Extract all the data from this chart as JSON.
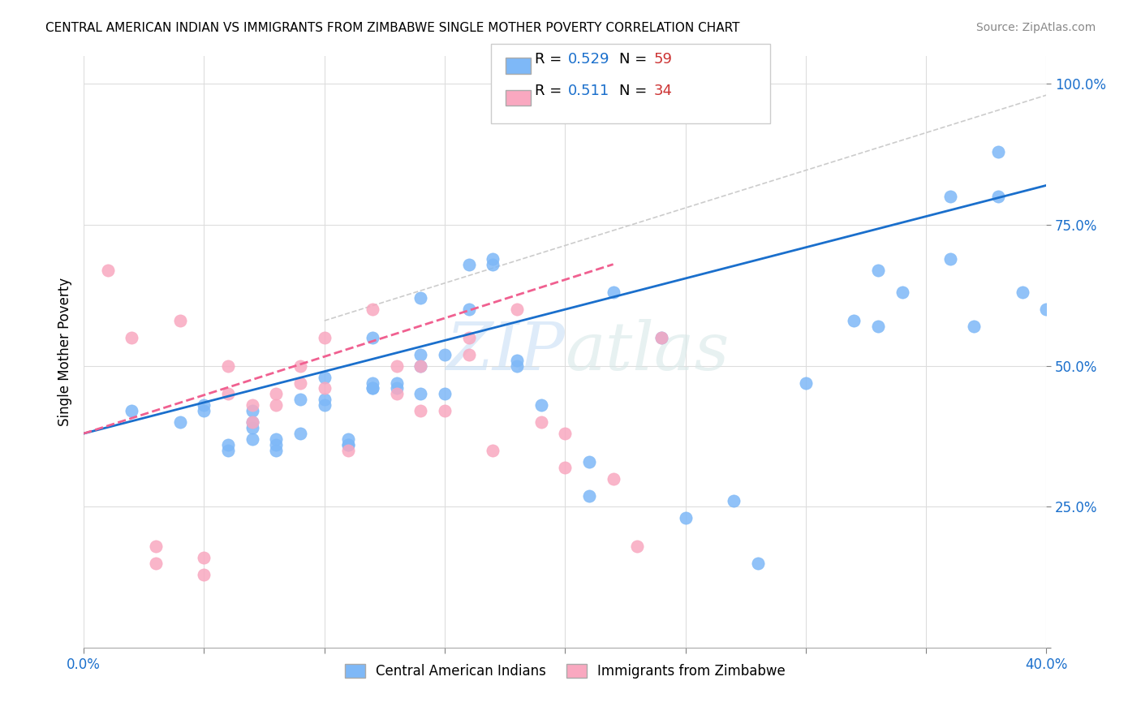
{
  "title": "CENTRAL AMERICAN INDIAN VS IMMIGRANTS FROM ZIMBABWE SINGLE MOTHER POVERTY CORRELATION CHART",
  "source": "Source: ZipAtlas.com",
  "ylabel": "Single Mother Poverty",
  "xlim": [
    0.0,
    0.4
  ],
  "ylim": [
    0.0,
    1.05
  ],
  "xticks": [
    0.0,
    0.05,
    0.1,
    0.15,
    0.2,
    0.25,
    0.3,
    0.35,
    0.4
  ],
  "yticks": [
    0.0,
    0.25,
    0.5,
    0.75,
    1.0
  ],
  "blue_R": "0.529",
  "blue_N": "59",
  "pink_R": "0.511",
  "pink_N": "34",
  "blue_color": "#7eb8f7",
  "pink_color": "#f9a8c0",
  "blue_line_color": "#1a6fcc",
  "pink_line_color": "#f06090",
  "ref_line_color": "#cccccc",
  "watermark_zip": "ZIP",
  "watermark_atlas": "atlas",
  "tick_label_color": "#1a6fcc",
  "legend_R_color": "#1a6fcc",
  "legend_N_color": "#cc3333",
  "blue_scatter_x": [
    0.02,
    0.04,
    0.05,
    0.05,
    0.06,
    0.06,
    0.07,
    0.07,
    0.07,
    0.07,
    0.08,
    0.08,
    0.08,
    0.09,
    0.09,
    0.1,
    0.1,
    0.1,
    0.11,
    0.11,
    0.11,
    0.12,
    0.12,
    0.12,
    0.12,
    0.13,
    0.13,
    0.14,
    0.14,
    0.14,
    0.14,
    0.15,
    0.15,
    0.16,
    0.16,
    0.17,
    0.17,
    0.18,
    0.18,
    0.19,
    0.21,
    0.21,
    0.22,
    0.24,
    0.25,
    0.27,
    0.28,
    0.3,
    0.32,
    0.33,
    0.33,
    0.34,
    0.36,
    0.36,
    0.37,
    0.38,
    0.38,
    0.39,
    0.4
  ],
  "blue_scatter_y": [
    0.42,
    0.4,
    0.42,
    0.43,
    0.35,
    0.36,
    0.37,
    0.39,
    0.4,
    0.42,
    0.35,
    0.36,
    0.37,
    0.38,
    0.44,
    0.43,
    0.44,
    0.48,
    0.36,
    0.36,
    0.37,
    0.46,
    0.46,
    0.47,
    0.55,
    0.46,
    0.47,
    0.45,
    0.5,
    0.52,
    0.62,
    0.45,
    0.52,
    0.6,
    0.68,
    0.68,
    0.69,
    0.5,
    0.51,
    0.43,
    0.27,
    0.33,
    0.63,
    0.55,
    0.23,
    0.26,
    0.15,
    0.47,
    0.58,
    0.57,
    0.67,
    0.63,
    0.69,
    0.8,
    0.57,
    0.8,
    0.88,
    0.63,
    0.6
  ],
  "pink_scatter_x": [
    0.01,
    0.02,
    0.03,
    0.03,
    0.04,
    0.05,
    0.05,
    0.06,
    0.06,
    0.07,
    0.07,
    0.08,
    0.08,
    0.09,
    0.09,
    0.1,
    0.1,
    0.11,
    0.12,
    0.13,
    0.13,
    0.14,
    0.14,
    0.15,
    0.16,
    0.16,
    0.17,
    0.18,
    0.19,
    0.2,
    0.2,
    0.22,
    0.23,
    0.24
  ],
  "pink_scatter_y": [
    0.67,
    0.55,
    0.15,
    0.18,
    0.58,
    0.13,
    0.16,
    0.45,
    0.5,
    0.4,
    0.43,
    0.43,
    0.45,
    0.47,
    0.5,
    0.46,
    0.55,
    0.35,
    0.6,
    0.45,
    0.5,
    0.42,
    0.5,
    0.42,
    0.52,
    0.55,
    0.35,
    0.6,
    0.4,
    0.32,
    0.38,
    0.3,
    0.18,
    0.55
  ],
  "blue_line_x": [
    0.0,
    0.4
  ],
  "blue_line_y": [
    0.38,
    0.82
  ],
  "pink_line_x": [
    0.0,
    0.22
  ],
  "pink_line_y": [
    0.38,
    0.68
  ],
  "ref_line_x": [
    0.1,
    0.4
  ],
  "ref_line_y": [
    0.58,
    0.98
  ]
}
